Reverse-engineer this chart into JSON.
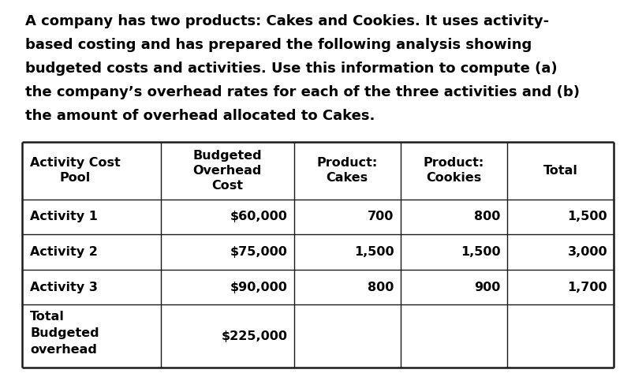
{
  "title_lines": [
    "A company has two products: Cakes and Cookies. It uses activity-",
    "based costing and has prepared the following analysis showing",
    "budgeted costs and activities. Use this information to compute (a)",
    "the company’s overhead rates for each of the three activities and (b)",
    "the amount of overhead allocated to Cakes."
  ],
  "col_headers": [
    [
      "Activity Cost",
      "Pool"
    ],
    [
      "Budgeted",
      "Overhead",
      "Cost"
    ],
    [
      "Product:",
      "Cakes"
    ],
    [
      "Product:",
      "Cookies"
    ],
    [
      "Total"
    ]
  ],
  "col_header_aligns": [
    "left",
    "center",
    "center",
    "center",
    "center"
  ],
  "rows": [
    [
      "Activity 1",
      "$60,000",
      "700",
      "800",
      "1,500"
    ],
    [
      "Activity 2",
      "$75,000",
      "1,500",
      "1,500",
      "3,000"
    ],
    [
      "Activity 3",
      "$90,000",
      "800",
      "900",
      "1,700"
    ],
    [
      "Total\nBudgeted\noverhead",
      "$225,000",
      "",
      "",
      ""
    ]
  ],
  "col_aligns": [
    "left",
    "right",
    "right",
    "right",
    "right"
  ],
  "col_widths_rel": [
    1.3,
    1.25,
    1.0,
    1.0,
    1.0
  ],
  "bg_color": "#ffffff",
  "border_color": "#1a1a1a",
  "title_font_size": 13.0,
  "cell_font_size": 11.5,
  "fig_width": 8.0,
  "fig_height": 4.78,
  "dpi": 100
}
